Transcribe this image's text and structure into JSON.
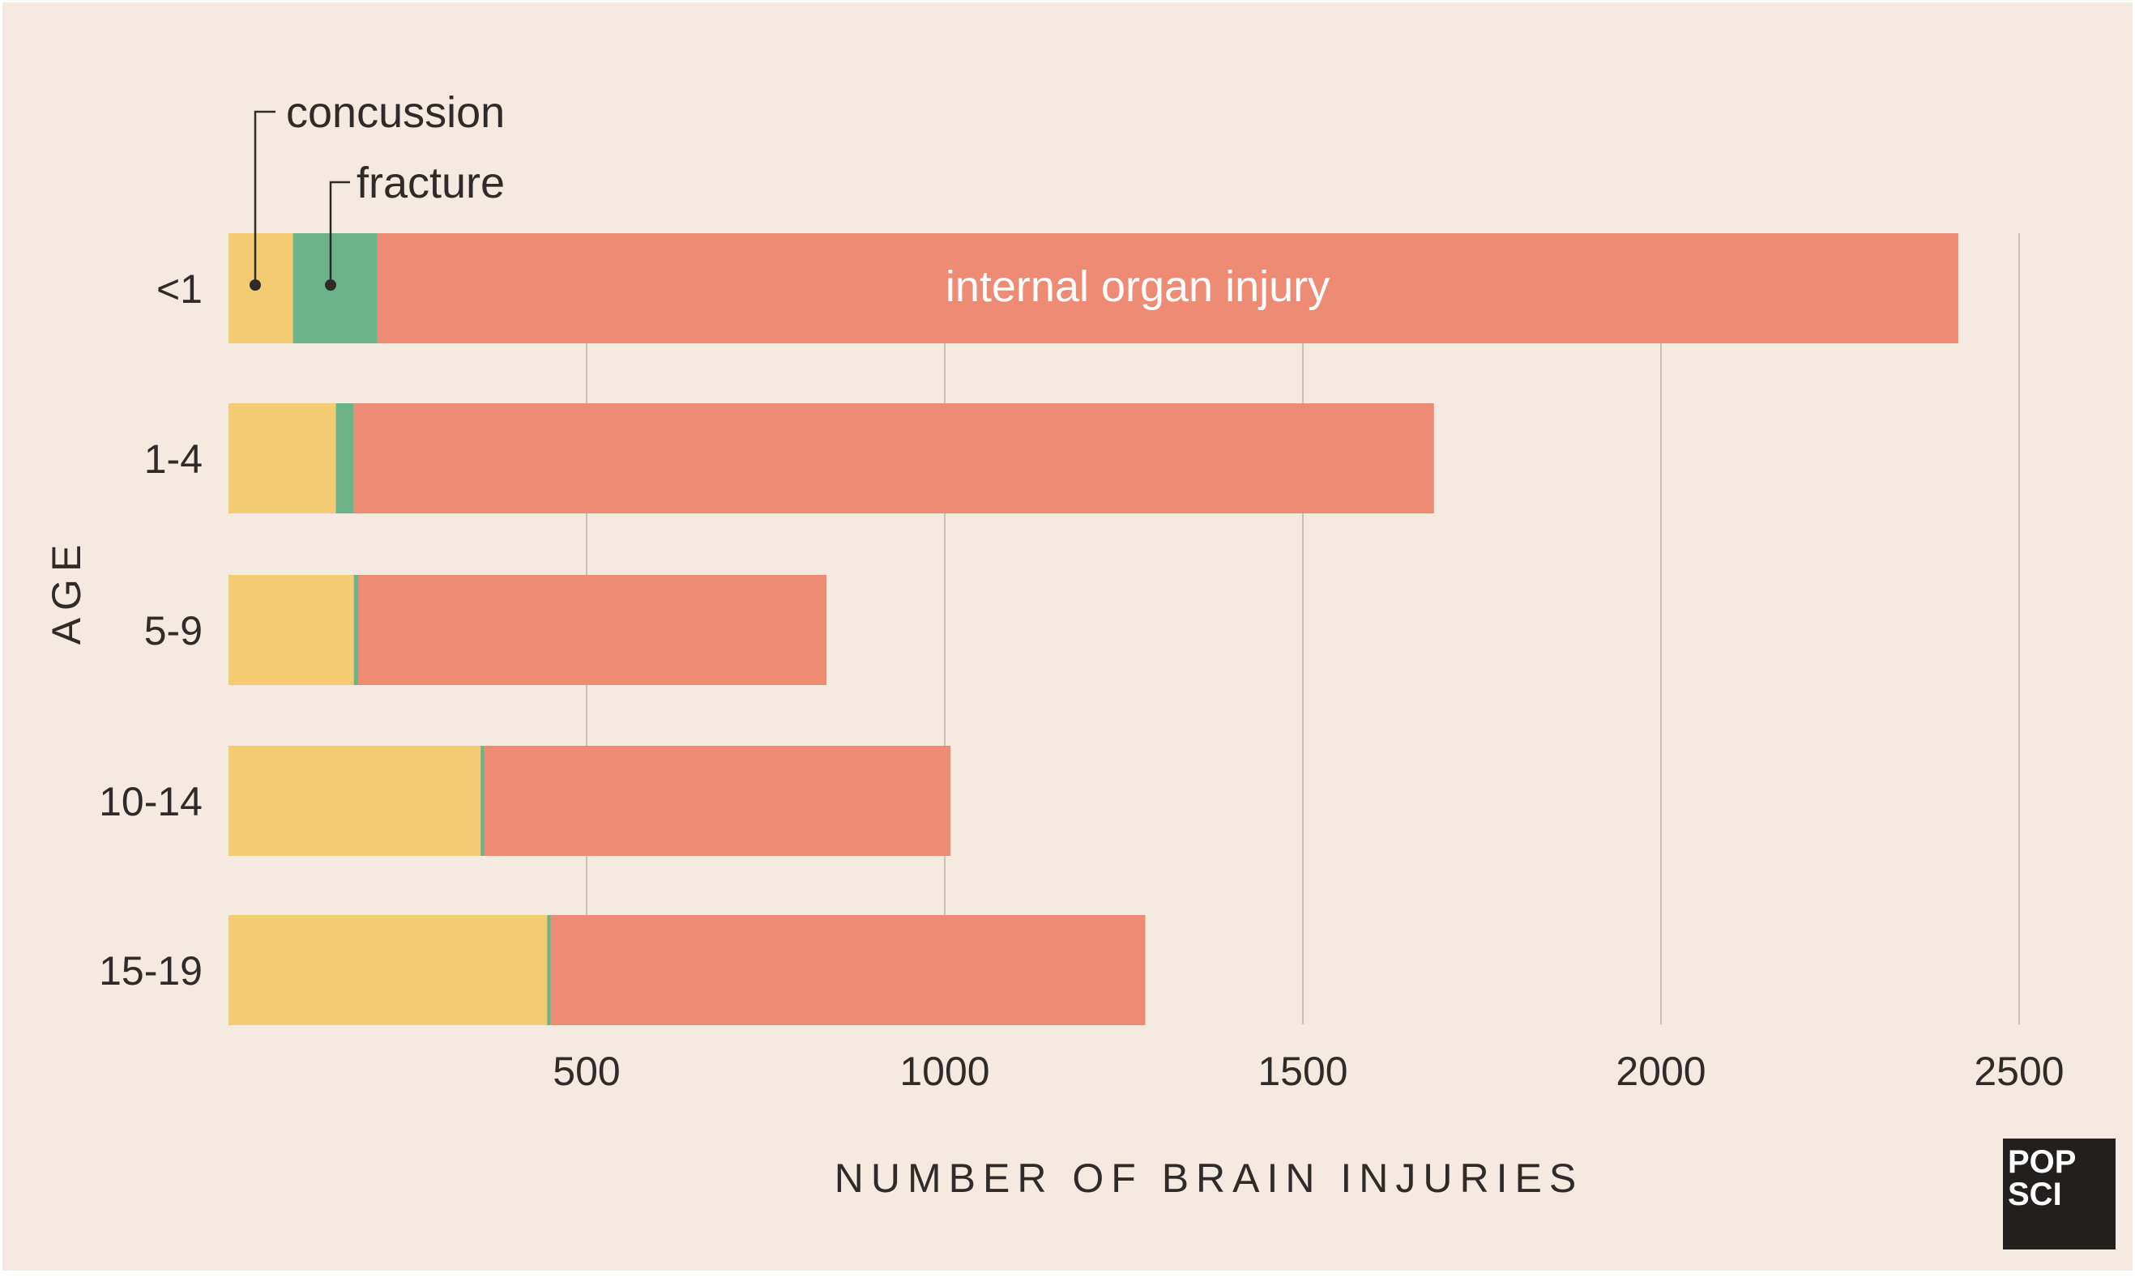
{
  "chart_data": {
    "type": "bar",
    "orientation": "horizontal",
    "stacked": true,
    "title": "",
    "xlabel": "NUMBER OF BRAIN INJURIES",
    "ylabel": "AGE",
    "xlim": [
      0,
      2500
    ],
    "xticks": [
      500,
      1000,
      1500,
      2000,
      2500
    ],
    "grid": true,
    "categories": [
      "<1",
      "1-4",
      "5-9",
      "10-14",
      "15-19"
    ],
    "series": [
      {
        "name": "concussion",
        "color": "#f2cb72",
        "values": [
          90,
          150,
          175,
          352,
          445
        ]
      },
      {
        "name": "fracture",
        "color": "#6db38a",
        "values": [
          118,
          25,
          6,
          5,
          5
        ]
      },
      {
        "name": "internal organ injury",
        "color": "#ee8b74",
        "values": [
          2207,
          1508,
          654,
          651,
          830
        ]
      }
    ],
    "annotations": {
      "concussion": "concussion",
      "fracture": "fracture",
      "internal": "internal organ injury"
    },
    "logo": {
      "line1": "POP",
      "line2": "SCI"
    },
    "colors": {
      "background": "#f4eadf",
      "grid": "#c7c1b9",
      "text": "#2e2b29",
      "logo_bg": "#221f1f",
      "logo_text": "#ffffff"
    }
  }
}
